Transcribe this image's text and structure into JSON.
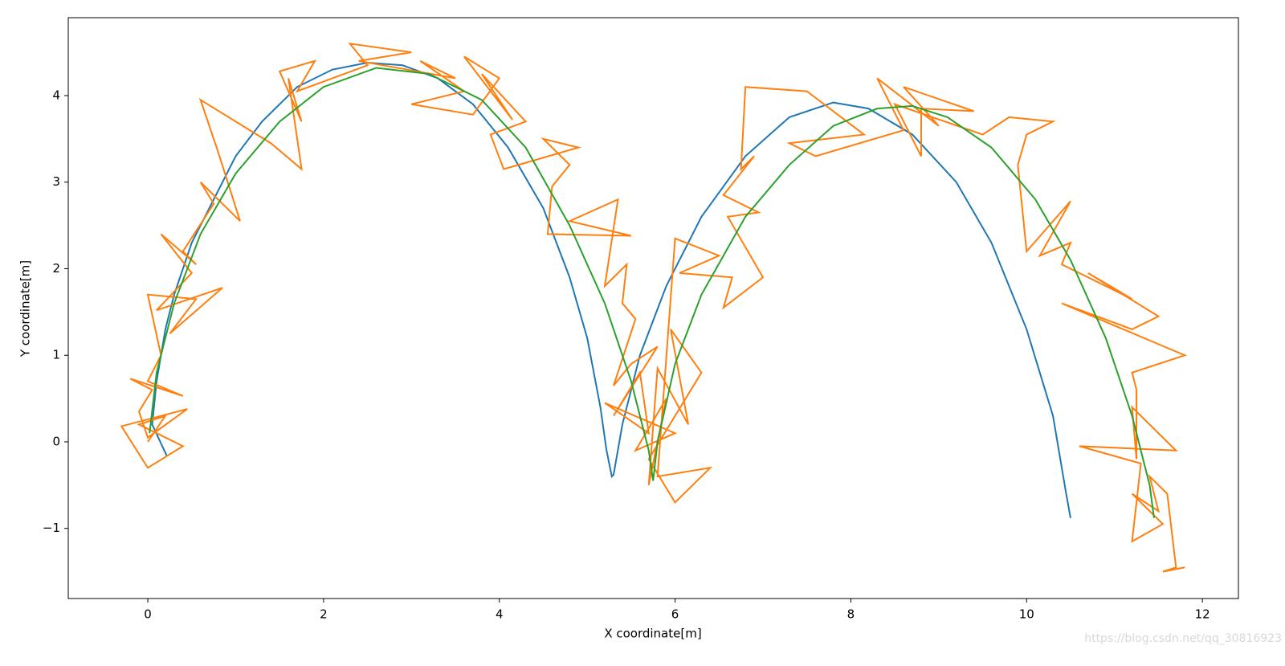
{
  "chart_data": {
    "type": "line",
    "x_label": "X coordinate[m]",
    "y_label": "Y coordinate[m]",
    "watermark": "https://blog.csdn.net/qq_30816923",
    "xlim": [
      -0.905,
      12.41
    ],
    "ylim": [
      -1.81,
      4.9
    ],
    "xticks": [
      0,
      2,
      4,
      6,
      8,
      10,
      12
    ],
    "yticks": [
      {
        "value": -1,
        "label": "−1"
      },
      0,
      1,
      2,
      3,
      4
    ],
    "grid": false,
    "series": [
      {
        "color": "#1f77b4",
        "x": [
          0.22,
          0.05,
          0.1,
          0.2,
          0.3,
          0.5,
          0.8,
          1.0,
          1.3,
          1.7,
          2.1,
          2.5,
          2.9,
          3.3,
          3.7,
          4.1,
          4.5,
          4.8,
          5.0,
          5.15,
          5.22,
          5.28,
          5.3,
          5.4,
          5.6,
          5.9,
          6.3,
          6.8,
          7.3,
          7.8,
          8.2,
          8.7,
          9.2,
          9.6,
          10.0,
          10.3,
          10.45,
          10.5
        ],
        "values": [
          -0.17,
          0.2,
          0.7,
          1.3,
          1.7,
          2.3,
          2.9,
          3.3,
          3.7,
          4.1,
          4.3,
          4.38,
          4.35,
          4.2,
          3.9,
          3.4,
          2.7,
          1.9,
          1.2,
          0.4,
          -0.1,
          -0.4,
          -0.38,
          0.2,
          1.0,
          1.8,
          2.6,
          3.3,
          3.75,
          3.92,
          3.85,
          3.55,
          3.0,
          2.3,
          1.3,
          0.3,
          -0.6,
          -0.88
        ]
      },
      {
        "color": "#ff7f0e",
        "x": [
          0.0,
          0.2,
          -0.1,
          0.4,
          0.0,
          -0.3,
          0.45,
          0.0,
          -0.1,
          0.05,
          -0.2,
          0.4,
          0.0,
          0.15,
          0.0,
          0.55,
          0.25,
          0.85,
          0.1,
          0.5,
          0.15,
          0.55,
          0.4,
          0.75,
          0.6,
          0.9,
          1.05,
          0.8,
          0.6,
          1.4,
          1.75,
          1.6,
          1.75,
          1.5,
          1.9,
          1.7,
          2.5,
          2.3,
          3.0,
          2.4,
          3.5,
          3.1,
          3.6,
          3.0,
          3.7,
          4.0,
          3.6,
          4.15,
          3.8,
          4.3,
          3.9,
          4.05,
          4.9,
          4.5,
          4.8,
          4.6,
          4.55,
          5.5,
          4.8,
          5.35,
          5.2,
          5.45,
          5.4,
          5.55,
          5.3,
          5.5,
          5.8,
          5.3,
          5.6,
          5.7,
          5.2,
          6.0,
          5.55,
          5.9,
          5.7,
          5.8,
          6.15,
          5.95,
          6.3,
          5.7,
          6.0,
          6.4,
          5.8,
          6.0,
          6.5,
          6.05,
          6.65,
          6.55,
          7.0,
          6.6,
          6.95,
          6.55,
          6.9,
          6.75,
          6.8,
          7.5,
          8.15,
          7.3,
          7.6,
          8.6,
          8.3,
          9.0,
          8.6,
          9.4,
          8.8,
          8.8,
          8.5,
          9.5,
          9.8,
          10.3,
          10.0,
          9.9,
          10.0,
          10.5,
          10.15,
          10.5,
          10.4,
          11.2,
          10.7,
          11.5,
          11.2,
          10.4,
          11.8,
          11.2,
          11.25,
          11.25,
          11.2,
          11.7,
          10.6,
          11.3,
          11.2,
          11.55,
          11.2,
          11.5,
          11.4,
          11.6,
          11.7,
          11.55,
          11.8
        ],
        "values": [
          0.0,
          0.3,
          0.2,
          -0.05,
          -0.3,
          0.18,
          0.38,
          0.05,
          0.35,
          0.6,
          0.73,
          0.53,
          0.7,
          1.0,
          1.7,
          1.65,
          1.25,
          1.78,
          1.52,
          1.95,
          2.4,
          2.05,
          2.2,
          2.75,
          3.0,
          2.7,
          2.55,
          3.35,
          3.95,
          3.45,
          3.15,
          4.2,
          3.7,
          4.28,
          4.4,
          4.05,
          4.35,
          4.6,
          4.5,
          4.4,
          4.2,
          4.4,
          4.05,
          3.9,
          3.78,
          4.2,
          4.45,
          3.72,
          4.25,
          3.7,
          3.55,
          3.15,
          3.4,
          3.5,
          3.2,
          2.95,
          2.4,
          2.38,
          2.55,
          2.8,
          1.8,
          2.05,
          1.6,
          1.42,
          0.65,
          0.9,
          1.1,
          0.3,
          0.8,
          0.1,
          0.45,
          0.1,
          -0.1,
          0.5,
          -0.5,
          0.85,
          0.2,
          1.3,
          0.8,
          -0.2,
          -0.7,
          -0.3,
          -0.4,
          2.35,
          2.15,
          1.95,
          1.9,
          1.55,
          1.9,
          2.6,
          2.65,
          2.85,
          3.3,
          3.15,
          4.1,
          4.05,
          3.55,
          3.45,
          3.3,
          3.6,
          4.2,
          3.65,
          4.1,
          3.82,
          3.85,
          3.3,
          3.9,
          3.55,
          3.75,
          3.7,
          3.55,
          3.2,
          2.2,
          2.78,
          2.15,
          2.3,
          2.05,
          1.65,
          1.95,
          1.45,
          1.3,
          1.6,
          1.0,
          0.8,
          0.6,
          -0.2,
          0.4,
          -0.1,
          -0.05,
          -0.25,
          -1.15,
          -0.95,
          -0.6,
          -0.8,
          -0.4,
          -0.6,
          -1.45,
          -1.5,
          -1.45
        ]
      },
      {
        "color": "#2ca02c",
        "x": [
          0.02,
          0.1,
          0.3,
          0.6,
          1.0,
          1.5,
          2.0,
          2.6,
          3.2,
          3.8,
          4.3,
          4.8,
          5.2,
          5.5,
          5.7,
          5.75,
          5.8,
          6.0,
          6.3,
          6.8,
          7.3,
          7.8,
          8.3,
          8.7,
          9.1,
          9.6,
          10.1,
          10.5,
          10.9,
          11.2,
          11.4,
          11.45
        ],
        "values": [
          0.1,
          0.8,
          1.6,
          2.4,
          3.1,
          3.7,
          4.1,
          4.32,
          4.25,
          3.95,
          3.4,
          2.5,
          1.6,
          0.7,
          -0.1,
          -0.45,
          0.0,
          0.9,
          1.7,
          2.6,
          3.2,
          3.65,
          3.85,
          3.88,
          3.75,
          3.4,
          2.8,
          2.1,
          1.2,
          0.3,
          -0.5,
          -0.88
        ]
      }
    ]
  }
}
